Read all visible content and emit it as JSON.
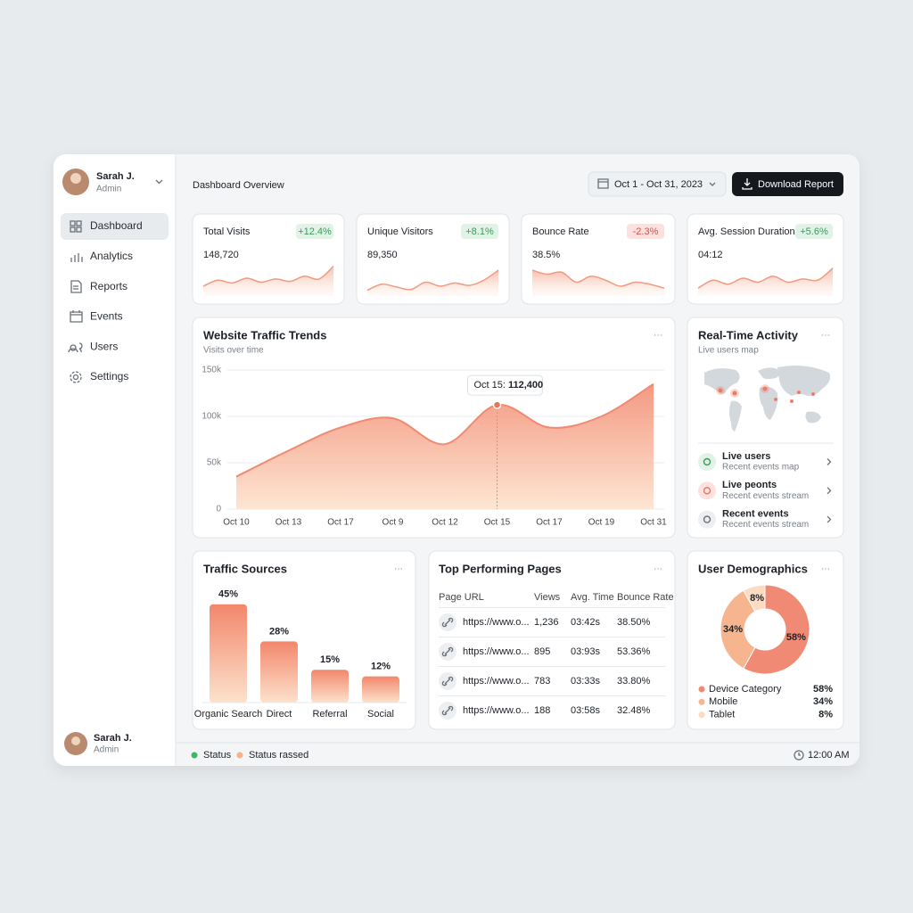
{
  "sidebar": {
    "user": {
      "name": "Sarah J.",
      "role": "Admin"
    },
    "nav": [
      "Dashboard",
      "Analytics",
      "Reports",
      "Events",
      "Users",
      "Settings"
    ],
    "footer_user": {
      "name": "Sarah J.",
      "role": "Admin"
    }
  },
  "header": {
    "title": "Dashboard Overview",
    "date_range": "Oct 1 - Oct 31, 2023",
    "button": "Download Report"
  },
  "kpis": [
    {
      "label": "Total Visits",
      "value": "148,720",
      "change": "+12.4%",
      "trend": [
        20,
        35,
        28,
        40,
        30,
        38,
        32,
        45,
        38,
        70
      ]
    },
    {
      "label": "Unique Visitors",
      "value": "89,350",
      "change": "+8.1%",
      "trend": [
        10,
        25,
        18,
        12,
        30,
        20,
        28,
        22,
        35,
        60
      ]
    },
    {
      "label": "Bounce Rate",
      "value": "38.5%",
      "change": "-2.3%",
      "trend": [
        60,
        50,
        55,
        30,
        45,
        35,
        20,
        30,
        25,
        15
      ]
    },
    {
      "label": "Avg. Session Duration",
      "value": "04:12",
      "change": "+5.6%",
      "trend": [
        15,
        35,
        25,
        40,
        30,
        45,
        30,
        38,
        35,
        65
      ]
    }
  ],
  "traffic_trends": {
    "type": "area",
    "title": "Website Traffic Trends",
    "subtitle": "Visits over time",
    "categories": [
      "Oct 10",
      "Oct 13",
      "Oct 17",
      "Oct 9",
      "Oct 12",
      "Oct 15",
      "Oct 17",
      "Oct 19",
      "Oct 31"
    ],
    "values": [
      35000,
      63000,
      88000,
      98000,
      70000,
      112400,
      88000,
      100000,
      135000
    ],
    "color": "#f08a70",
    "ylim": [
      0,
      150000
    ],
    "yticks": [
      0,
      {
        "value": 50000,
        "label": "50k"
      },
      {
        "value": 100000,
        "label": "100k"
      },
      {
        "value": 150000,
        "label": "150k"
      }
    ],
    "grid": true,
    "tooltip": {
      "label": "Oct 15:",
      "value": "112,400"
    }
  },
  "realtime": {
    "title": "Real-Time Activity",
    "subtitle": "Live users map",
    "items": [
      {
        "title": "Live users",
        "subtitle": "Recent events map"
      },
      {
        "title": "Live peonts",
        "subtitle": "Recent events stream"
      },
      {
        "title": "Recent events",
        "subtitle": "Recent events stream"
      }
    ]
  },
  "traffic_sources": {
    "type": "bar",
    "title": "Traffic Sources",
    "categories": [
      "Organic Search",
      "Direct",
      "Referral",
      "Social"
    ],
    "values": [
      45,
      28,
      15,
      12
    ],
    "value_labels": [
      "45%",
      "28%",
      "15%",
      "12%"
    ]
  },
  "top_pages": {
    "title": "Top Performing Pages",
    "columns": [
      "Page URL",
      "Views",
      "Avg. Time",
      "Bounce Rate"
    ],
    "rows": [
      [
        "https://www.o...",
        "1,236",
        "03:42s",
        "38.50%"
      ],
      [
        "https://www.o...",
        "895",
        "03:93s",
        "53.36%"
      ],
      [
        "https://www.o...",
        "783",
        "03:33s",
        "33.80%"
      ],
      [
        "https://www.o...",
        "188",
        "03:58s",
        "32.48%"
      ]
    ]
  },
  "demographics": {
    "type": "pie",
    "title": "User Demographics",
    "categories": [
      "Device Category",
      "Mobile",
      "Tablet"
    ],
    "values": [
      58,
      34,
      8
    ],
    "value_labels": [
      "58%",
      "34%",
      "8%"
    ],
    "colors": [
      "#f08a74",
      "#f6b58f",
      "#fbdcc2"
    ]
  },
  "status_bar": {
    "items": [
      "Status",
      "Status rassed"
    ],
    "time": "12:00 AM"
  }
}
